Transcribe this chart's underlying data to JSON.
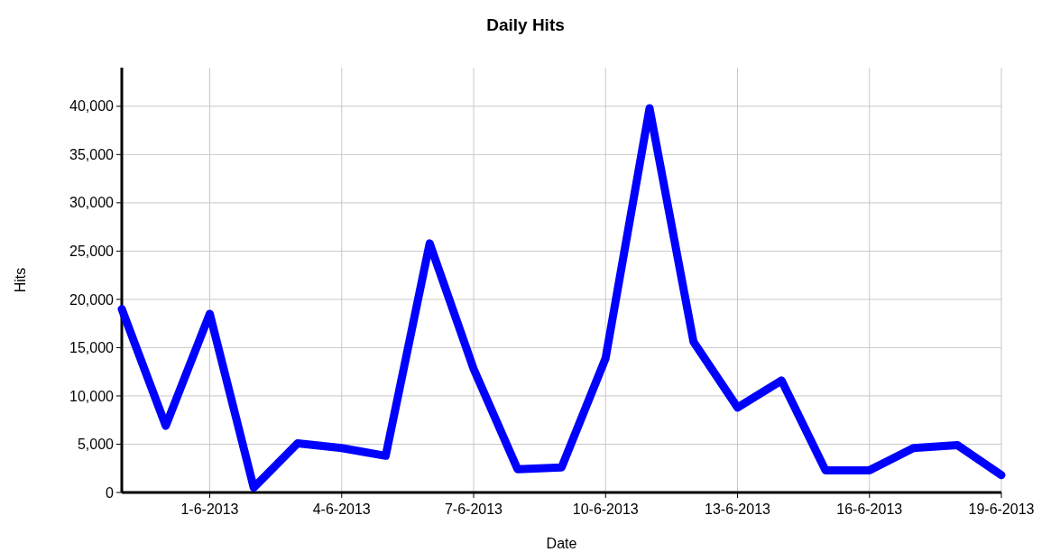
{
  "chart_data": {
    "type": "line",
    "title": "Daily Hits",
    "xlabel": "Date",
    "ylabel": "Hits",
    "x": [
      "2013-05-30",
      "2013-05-31",
      "2013-06-01",
      "2013-06-02",
      "2013-06-03",
      "2013-06-04",
      "2013-06-05",
      "2013-06-06",
      "2013-06-07",
      "2013-06-08",
      "2013-06-09",
      "2013-06-10",
      "2013-06-11",
      "2013-06-12",
      "2013-06-13",
      "2013-06-14",
      "2013-06-15",
      "2013-06-16",
      "2013-06-17",
      "2013-06-18",
      "2013-06-19"
    ],
    "series": [
      {
        "color": "#0000ff",
        "values": [
          19000,
          6900,
          18500,
          500,
          5100,
          4600,
          3800,
          25800,
          12800,
          2400,
          2600,
          13900,
          39800,
          15600,
          8800,
          11600,
          2300,
          2300,
          4600,
          4900,
          1800
        ]
      }
    ],
    "xlim": [
      "2013-05-30",
      "2013-06-19"
    ],
    "xticks": [
      {
        "value": "2013-06-01",
        "label": "1-6-2013"
      },
      {
        "value": "2013-06-04",
        "label": "4-6-2013"
      },
      {
        "value": "2013-06-07",
        "label": "7-6-2013"
      },
      {
        "value": "2013-06-10",
        "label": "10-6-2013"
      },
      {
        "value": "2013-06-13",
        "label": "13-6-2013"
      },
      {
        "value": "2013-06-16",
        "label": "16-6-2013"
      },
      {
        "value": "2013-06-19",
        "label": "19-6-2013"
      }
    ],
    "ylim": [
      0,
      44000
    ],
    "yticks": [
      0,
      {
        "value": 5000,
        "label": "5,000"
      },
      {
        "value": 10000,
        "label": "10,000"
      },
      {
        "value": 15000,
        "label": "15,000"
      },
      {
        "value": 20000,
        "label": "20,000"
      },
      {
        "value": 25000,
        "label": "25,000"
      },
      {
        "value": 30000,
        "label": "30,000"
      },
      {
        "value": 35000,
        "label": "35,000"
      },
      {
        "value": 40000,
        "label": "40,000"
      }
    ],
    "grid": true,
    "marker": "none",
    "line_style": "solid"
  }
}
